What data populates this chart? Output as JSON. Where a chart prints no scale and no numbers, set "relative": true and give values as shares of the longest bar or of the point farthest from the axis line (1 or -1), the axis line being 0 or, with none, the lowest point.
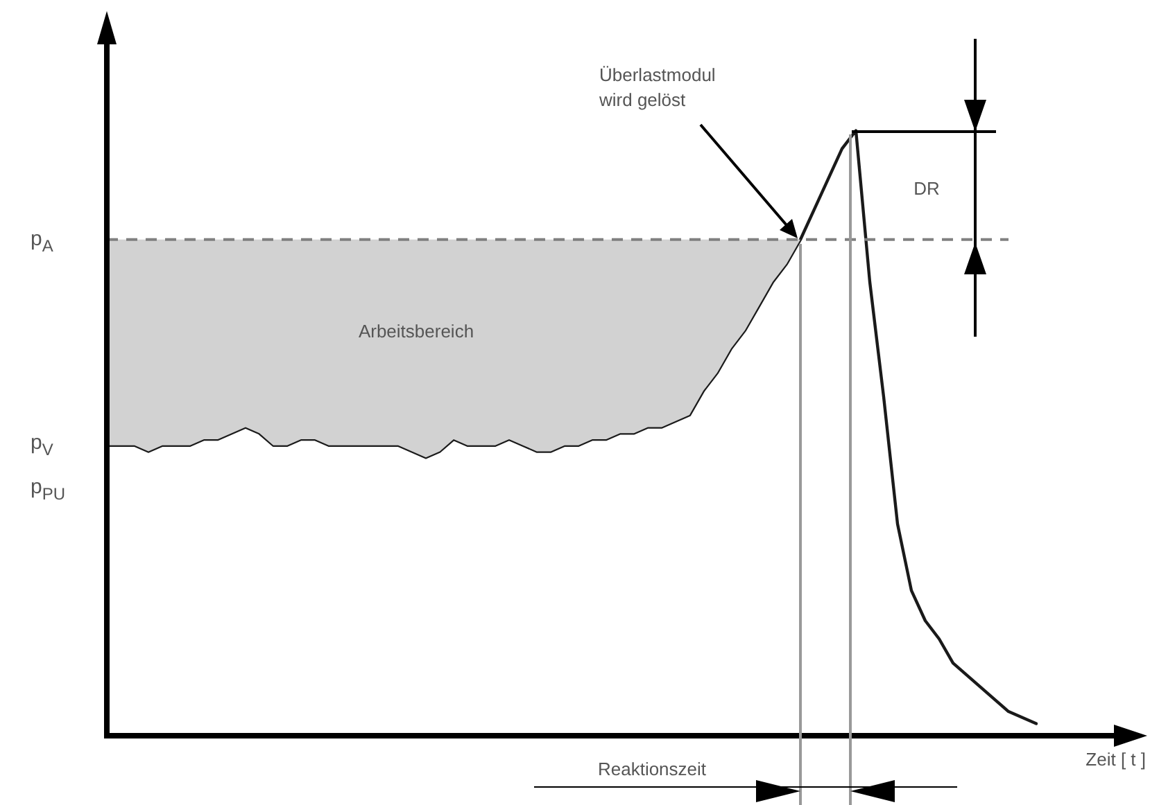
{
  "chart_data": {
    "type": "line",
    "relative": true,
    "xlabel": "Zeit [ t ]",
    "categories": [
      null,
      null,
      null,
      null,
      null,
      null,
      null,
      null,
      null,
      null,
      null,
      null,
      null,
      null,
      null,
      null,
      null,
      null,
      null,
      null,
      null,
      null,
      null,
      null,
      null,
      null,
      null,
      null,
      null,
      null,
      null,
      null,
      null,
      null,
      null,
      null,
      null,
      null,
      null,
      null,
      null,
      null,
      null,
      null,
      null,
      null,
      null,
      null,
      null,
      null,
      null,
      null,
      null,
      null,
      null,
      null,
      null,
      null,
      null,
      null,
      null,
      null,
      null,
      null,
      null,
      null,
      null,
      null
    ],
    "series": [
      {
        "color": "#1a1a1a",
        "values": [
          0.48,
          0.48,
          0.48,
          0.47,
          0.48,
          0.48,
          0.48,
          0.49,
          0.49,
          0.5,
          0.51,
          0.5,
          0.48,
          0.48,
          0.49,
          0.49,
          0.48,
          0.48,
          0.48,
          0.48,
          0.48,
          0.48,
          0.47,
          0.46,
          0.47,
          0.49,
          0.48,
          0.48,
          0.48,
          0.49,
          0.48,
          0.47,
          0.47,
          0.48,
          0.48,
          0.49,
          0.49,
          0.5,
          0.5,
          0.51,
          0.51,
          0.52,
          0.53,
          0.57,
          0.6,
          0.64,
          0.67,
          0.71,
          0.75,
          0.78,
          0.82,
          0.87,
          0.92,
          0.97,
          1.0,
          0.75,
          0.56,
          0.35,
          0.24,
          0.19,
          0.16,
          0.12,
          0.1,
          0.08,
          0.06,
          0.04,
          0.03,
          0.02
        ],
        "lower": [
          0.48,
          0.48,
          0.48,
          0.47,
          0.48,
          0.48,
          0.48,
          0.49,
          0.49,
          0.5,
          0.51,
          0.5,
          0.48,
          0.48,
          0.49,
          0.49,
          0.48,
          0.48,
          0.48,
          0.48,
          0.48,
          0.48,
          0.47,
          0.46,
          0.47,
          0.49,
          0.48,
          0.48,
          0.48,
          0.49,
          0.48,
          0.47,
          0.47,
          0.48,
          0.48,
          0.49,
          0.49,
          0.5,
          0.5,
          0.51,
          0.51,
          0.52,
          0.53,
          0.57,
          0.6,
          0.64,
          0.67,
          0.71,
          0.75,
          0.78,
          0.82,
          null,
          null,
          null,
          null,
          null,
          null,
          null,
          null,
          null,
          null,
          null,
          null,
          null,
          null,
          null,
          null,
          null
        ],
        "upper": [
          0.82,
          0.82,
          0.82,
          0.82,
          0.82,
          0.82,
          0.82,
          0.82,
          0.82,
          0.82,
          0.82,
          0.82,
          0.82,
          0.82,
          0.82,
          0.82,
          0.82,
          0.82,
          0.82,
          0.82,
          0.82,
          0.82,
          0.82,
          0.82,
          0.82,
          0.82,
          0.82,
          0.82,
          0.82,
          0.82,
          0.82,
          0.82,
          0.82,
          0.82,
          0.82,
          0.82,
          0.82,
          0.82,
          0.82,
          0.82,
          0.82,
          0.82,
          0.82,
          0.82,
          0.82,
          0.82,
          0.82,
          0.82,
          0.82,
          0.82,
          0.82,
          null,
          null,
          null,
          null,
          null,
          null,
          null,
          null,
          null,
          null,
          null,
          null,
          null,
          null,
          null,
          null,
          null
        ]
      }
    ],
    "ref_lines": [
      {
        "axis": "y",
        "value": 0.82,
        "label": "p$_{A}$",
        "color": "#808080",
        "line_style": "dashed"
      }
    ],
    "annotations": [
      "Arbeitsbereich",
      "Überlastmodul wird gelöst",
      "DR",
      "Reaktionszeit",
      "p$_{V}$",
      "p$_{PU}$"
    ],
    "legend": false,
    "marker": "none",
    "line_style": "solid"
  }
}
